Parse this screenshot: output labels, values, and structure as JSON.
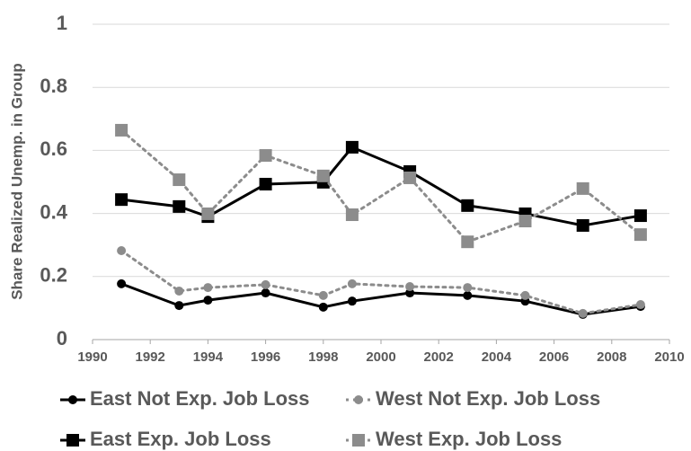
{
  "chart_data": {
    "type": "line",
    "y_label": "Share Realized Unemp. in Group",
    "x": [
      1991,
      1993,
      1994,
      1996,
      1998,
      1999,
      2001,
      2003,
      2005,
      2007,
      2009
    ],
    "series": [
      {
        "name": "East Not Exp. Job Loss",
        "color": "#000000",
        "marker": "circle",
        "line_style": "solid",
        "values": [
          0.177,
          0.108,
          0.125,
          0.148,
          0.103,
          0.122,
          0.148,
          0.14,
          0.122,
          0.08,
          0.105
        ]
      },
      {
        "name": "West Not Exp. Job Loss",
        "color": "#8c8c8c",
        "marker": "circle",
        "line_style": "dotted",
        "values": [
          0.282,
          0.154,
          0.165,
          0.174,
          0.14,
          0.177,
          0.168,
          0.165,
          0.14,
          0.083,
          0.111
        ]
      },
      {
        "name": "East Exp. Job Loss",
        "color": "#000000",
        "marker": "square",
        "line_style": "solid",
        "values": [
          0.444,
          0.422,
          0.39,
          0.493,
          0.499,
          0.61,
          0.533,
          0.425,
          0.399,
          0.362,
          0.393
        ]
      },
      {
        "name": "West Exp. Job Loss",
        "color": "#8c8c8c",
        "marker": "square",
        "line_style": "dotted",
        "values": [
          0.664,
          0.507,
          0.399,
          0.584,
          0.519,
          0.396,
          0.513,
          0.31,
          0.376,
          0.479,
          0.333
        ]
      }
    ],
    "xlim": [
      1990,
      2010
    ],
    "xticks": [
      1990,
      1992,
      1994,
      1996,
      1998,
      2000,
      2002,
      2004,
      2006,
      2008,
      2010
    ],
    "ylim": [
      0,
      1
    ],
    "yticks": [
      0,
      0.2,
      0.4,
      0.6,
      0.8,
      1
    ],
    "grid": true,
    "legend": "bottom"
  }
}
